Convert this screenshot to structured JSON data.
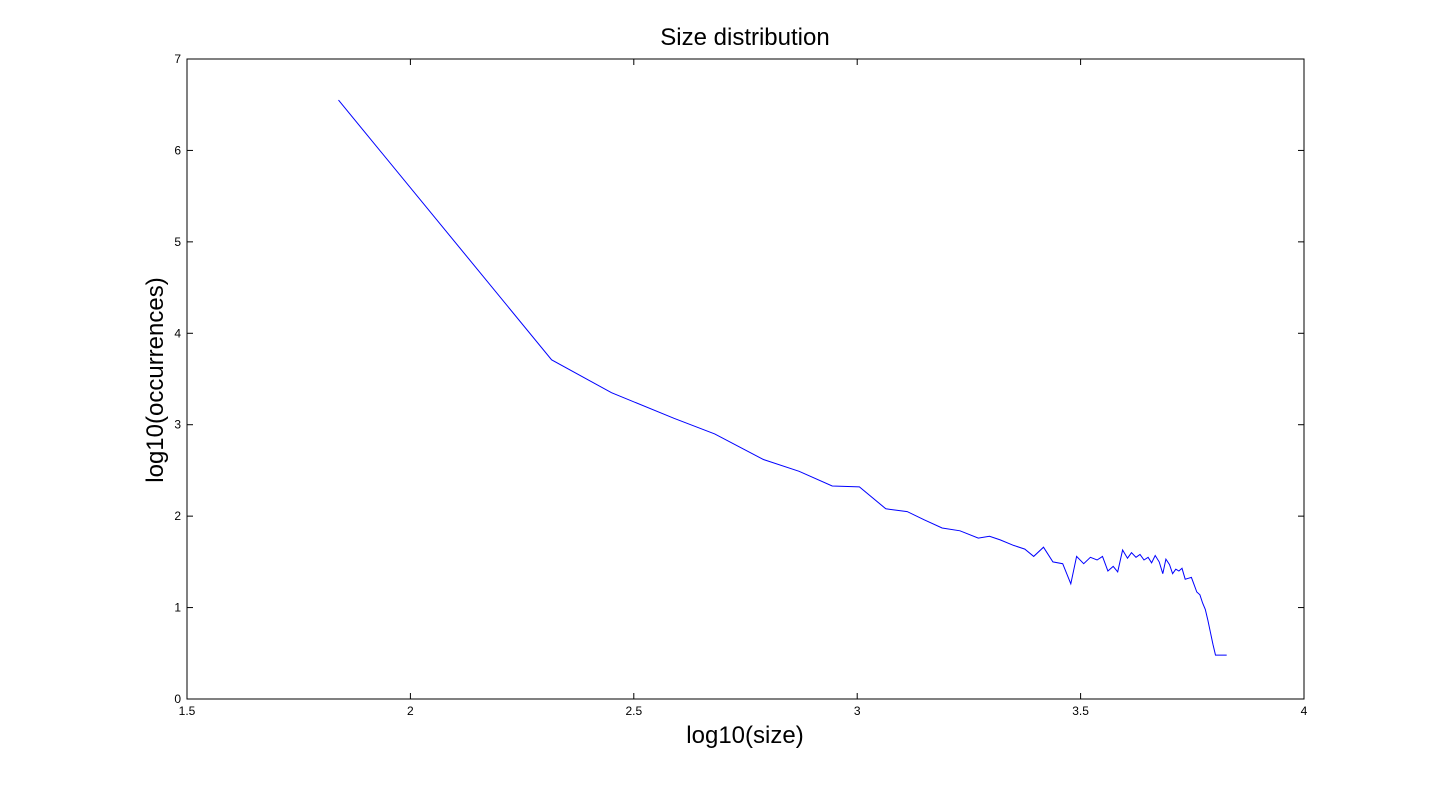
{
  "chart_data": {
    "type": "line",
    "title": "Size distribution",
    "xlabel": "log10(size)",
    "ylabel": "log10(occurrences)",
    "xlim": [
      1.5,
      4
    ],
    "ylim": [
      0,
      7
    ],
    "xticks": [
      1.5,
      2,
      2.5,
      3,
      3.5,
      4
    ],
    "yticks": [
      0,
      1,
      2,
      3,
      4,
      5,
      6,
      7
    ],
    "xtick_labels": [
      "1.5",
      "2",
      "2.5",
      "3",
      "3.5",
      "4"
    ],
    "ytick_labels": [
      "0",
      "1",
      "2",
      "3",
      "4",
      "5",
      "6",
      "7"
    ],
    "grid": false,
    "line_color": "#0000ff",
    "series": [
      {
        "x": [
          1.839,
          2.316,
          2.45,
          2.59,
          2.681,
          2.79,
          2.87,
          2.944,
          3.005,
          3.064,
          3.112,
          3.15,
          3.19,
          3.23,
          3.271,
          3.296,
          3.32,
          3.35,
          3.375,
          3.395,
          3.417,
          3.438,
          3.46,
          3.478,
          3.491,
          3.507,
          3.522,
          3.537,
          3.549,
          3.561,
          3.573,
          3.583,
          3.594,
          3.605,
          3.614,
          3.624,
          3.633,
          3.642,
          3.651,
          3.659,
          3.667,
          3.676,
          3.684,
          3.691,
          3.699,
          3.706,
          3.713,
          3.72,
          3.727,
          3.734,
          3.741,
          3.748,
          3.754,
          3.76,
          3.767,
          3.773,
          3.779,
          3.785,
          3.791,
          3.796,
          3.802,
          3.807,
          3.812,
          3.817,
          3.822,
          3.827
        ],
        "y": [
          6.55,
          3.71,
          3.35,
          3.07,
          2.9,
          2.62,
          2.49,
          2.33,
          2.32,
          2.08,
          2.05,
          1.96,
          1.87,
          1.84,
          1.76,
          1.78,
          1.74,
          1.68,
          1.64,
          1.56,
          1.66,
          1.5,
          1.48,
          1.26,
          1.56,
          1.48,
          1.55,
          1.52,
          1.56,
          1.4,
          1.45,
          1.39,
          1.63,
          1.54,
          1.6,
          1.55,
          1.58,
          1.52,
          1.55,
          1.49,
          1.57,
          1.5,
          1.37,
          1.53,
          1.47,
          1.37,
          1.42,
          1.4,
          1.43,
          1.31,
          1.32,
          1.33,
          1.25,
          1.17,
          1.14,
          1.05,
          0.98,
          0.86,
          0.72,
          0.6,
          0.48,
          0.48,
          0.48,
          0.48,
          0.48,
          0.48
        ]
      }
    ]
  }
}
